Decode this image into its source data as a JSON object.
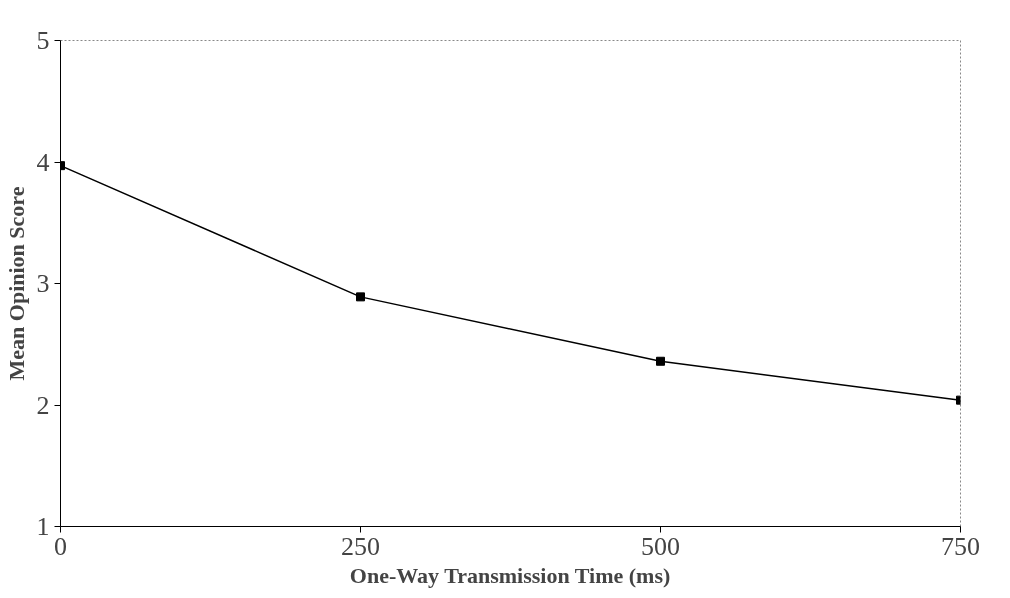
{
  "chart_data": {
    "type": "line",
    "xlabel": "One-Way Transmission Time (ms)",
    "ylabel": "Mean Opinion Score",
    "x": [
      0,
      250,
      500,
      750
    ],
    "series": [
      {
        "color": "#000000",
        "values": [
          3.97,
          2.89,
          2.36,
          2.04
        ]
      }
    ],
    "xlim": [
      0,
      750
    ],
    "ylim": [
      1,
      5
    ],
    "xticks": [
      0,
      250,
      500,
      750
    ],
    "yticks": [
      1,
      2,
      3,
      4,
      5
    ],
    "grid": false,
    "marker": "square",
    "line_style": "solid"
  }
}
